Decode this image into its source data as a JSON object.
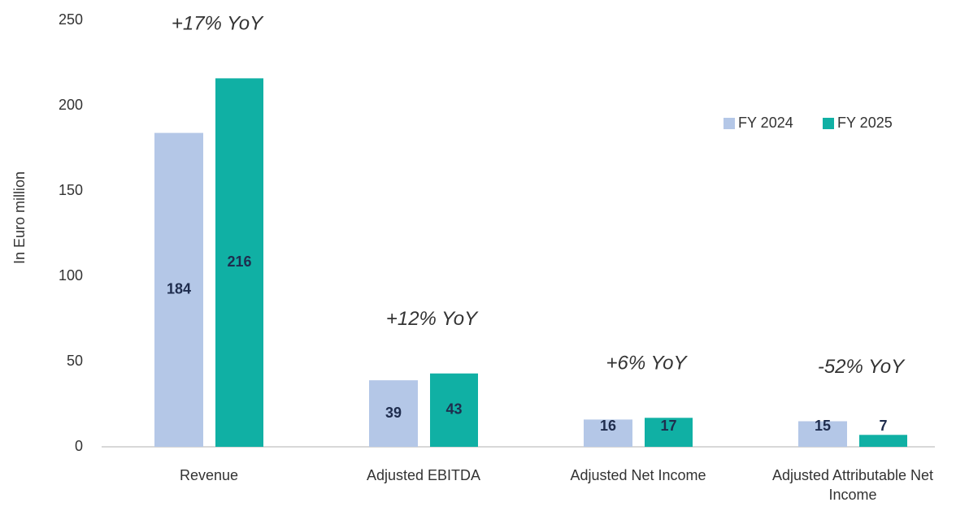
{
  "chart_data": {
    "type": "bar",
    "y_label": "In Euro million",
    "categories": [
      "Revenue",
      "Adjusted EBITDA",
      "Adjusted Net Income",
      "Adjusted Attributable Net Income"
    ],
    "series": [
      {
        "name": "FY 2024",
        "color": "#b4c7e7",
        "values": [
          184,
          39,
          16,
          15
        ]
      },
      {
        "name": "FY 2025",
        "color": "#10b0a4",
        "values": [
          216,
          43,
          17,
          7
        ]
      }
    ],
    "annotations": [
      "+17% YoY",
      "+12% YoY",
      "+6% YoY",
      "-52% YoY"
    ],
    "ylim": [
      0,
      250
    ],
    "yticks": [
      0,
      50,
      100,
      150,
      200,
      250
    ],
    "grid": false,
    "legend": "upper right"
  }
}
